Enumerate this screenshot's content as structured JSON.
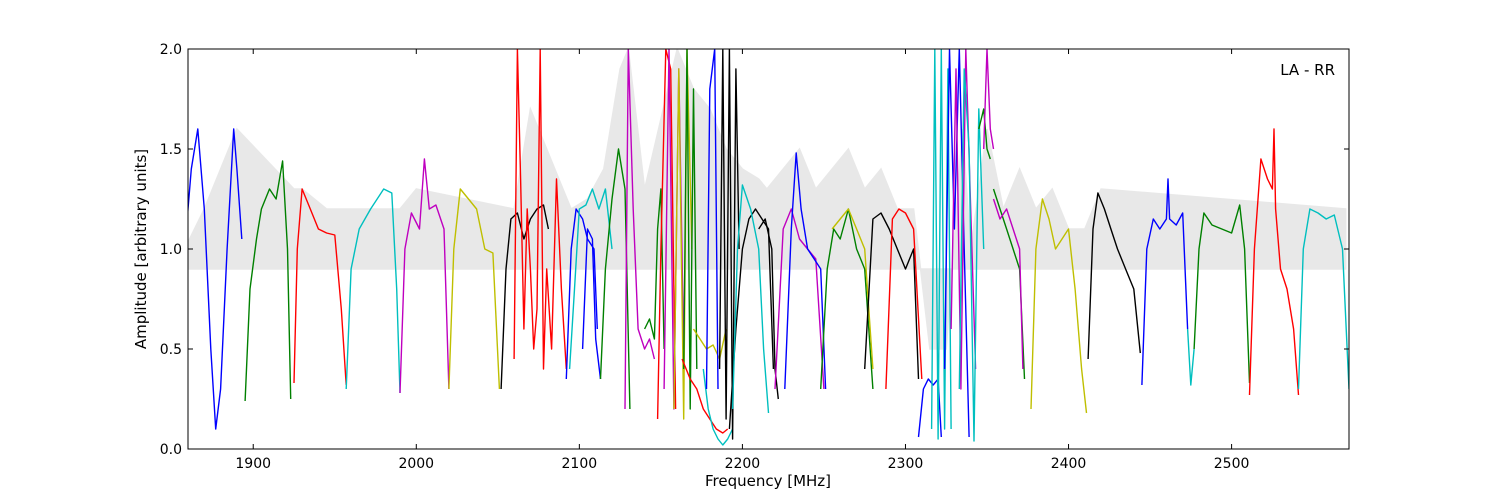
{
  "chart_data": {
    "type": "line",
    "title": "",
    "xlabel": "Frequency [MHz]",
    "ylabel": "Amplitude [arbitrary units]",
    "annotation": "LA - RR",
    "xlim": [
      1860,
      2572
    ],
    "ylim": [
      0.0,
      2.0
    ],
    "xticks": [
      1900,
      2000,
      2100,
      2200,
      2300,
      2400,
      2500
    ],
    "xtick_labels": [
      "1900",
      "2000",
      "2100",
      "2200",
      "2300",
      "2400",
      "2500"
    ],
    "yticks": [
      0.0,
      0.5,
      1.0,
      1.5,
      2.0
    ],
    "ytick_labels": [
      "0.0",
      "0.5",
      "1.0",
      "1.5",
      "2.0"
    ],
    "grid": false,
    "legend": "none",
    "background_series": {
      "color": "#c0c0c0",
      "x": [
        1858,
        1870,
        1890,
        1925,
        1930,
        1945,
        1990,
        2000,
        2060,
        2070,
        2090,
        2095,
        2105,
        2115,
        2125,
        2130,
        2140,
        2160,
        2170,
        2180,
        2190,
        2200,
        2210,
        2215,
        2225,
        2235,
        2245,
        2255,
        2265,
        2275,
        2285,
        2295,
        2305,
        2315,
        2325,
        2335,
        2340,
        2350,
        2360,
        2370,
        2380,
        2390,
        2400,
        2410,
        2420,
        2570
      ],
      "y": [
        1.0,
        1.2,
        1.6,
        1.3,
        1.3,
        1.2,
        1.2,
        1.3,
        1.2,
        1.7,
        1.3,
        1.2,
        1.25,
        1.4,
        1.9,
        2.0,
        1.3,
        2.0,
        1.8,
        1.7,
        1.5,
        1.4,
        1.35,
        1.3,
        1.4,
        1.5,
        1.3,
        1.4,
        1.5,
        1.3,
        1.4,
        1.2,
        1.2,
        0.5,
        0.5,
        1.6,
        1.0,
        1.6,
        1.2,
        1.4,
        1.2,
        1.3,
        1.1,
        1.1,
        1.3,
        1.2
      ]
    },
    "series": [
      {
        "color": "#0000ff",
        "x": [
          1858,
          1862,
          1866,
          1870,
          1874,
          1877,
          1880,
          1884,
          1888,
          1890,
          1893
        ],
        "y": [
          1.0,
          1.4,
          1.6,
          1.2,
          0.5,
          0.1,
          0.3,
          1.0,
          1.6,
          1.4,
          1.05
        ]
      },
      {
        "color": "#008000",
        "x": [
          1895,
          1898,
          1902,
          1905,
          1910,
          1914,
          1918,
          1921,
          1923
        ],
        "y": [
          0.24,
          0.8,
          1.05,
          1.2,
          1.3,
          1.25,
          1.44,
          1.0,
          0.25
        ]
      },
      {
        "color": "#ff0000",
        "x": [
          1925,
          1927,
          1930,
          1935,
          1940,
          1945,
          1950,
          1954,
          1957
        ],
        "y": [
          0.33,
          1.0,
          1.3,
          1.2,
          1.1,
          1.08,
          1.07,
          0.7,
          0.32
        ]
      },
      {
        "color": "#00bfbf",
        "x": [
          1957,
          1960,
          1965,
          1972,
          1980,
          1985,
          1988,
          1990
        ],
        "y": [
          0.3,
          0.9,
          1.1,
          1.2,
          1.3,
          1.28,
          0.8,
          0.28
        ]
      },
      {
        "color": "#bf00bf",
        "x": [
          1990,
          1993,
          1997,
          2002,
          2005,
          2008,
          2012,
          2017,
          2020
        ],
        "y": [
          0.28,
          1.0,
          1.18,
          1.1,
          1.45,
          1.2,
          1.22,
          1.1,
          0.3
        ]
      },
      {
        "color": "#bfbf00",
        "x": [
          2020,
          2023,
          2027,
          2032,
          2037,
          2042,
          2047,
          2051
        ],
        "y": [
          0.3,
          1.0,
          1.3,
          1.25,
          1.2,
          1.0,
          0.98,
          0.3
        ]
      },
      {
        "color": "#000000",
        "x": [
          2052,
          2055,
          2058,
          2062,
          2066,
          2070,
          2074,
          2078,
          2081
        ],
        "y": [
          0.3,
          0.9,
          1.15,
          1.18,
          1.05,
          1.15,
          1.2,
          1.22,
          1.1
        ]
      },
      {
        "color": "#ff0000",
        "x": [
          2060,
          2062,
          2064,
          2066,
          2068,
          2070,
          2072,
          2074,
          2076,
          2078,
          2080,
          2083,
          2086,
          2089,
          2092
        ],
        "y": [
          0.45,
          2.0,
          1.35,
          0.6,
          1.2,
          0.9,
          0.5,
          0.7,
          2.0,
          0.4,
          0.9,
          0.5,
          1.35,
          0.8,
          0.4
        ]
      },
      {
        "color": "#0000ff",
        "x": [
          2092,
          2095,
          2098,
          2102,
          2105,
          2109,
          2111
        ],
        "y": [
          0.35,
          1.0,
          1.2,
          1.15,
          1.05,
          1.0,
          0.6
        ]
      },
      {
        "color": "#00bfbf",
        "x": [
          2094,
          2097,
          2100,
          2104,
          2108,
          2112,
          2116,
          2120
        ],
        "y": [
          0.4,
          0.8,
          1.2,
          1.22,
          1.3,
          1.2,
          1.3,
          1.0
        ]
      },
      {
        "color": "#0000ff",
        "x": [
          2102,
          2105,
          2108,
          2110,
          2113
        ],
        "y": [
          0.5,
          1.1,
          1.05,
          0.55,
          0.35
        ]
      },
      {
        "color": "#008000",
        "x": [
          2113,
          2116,
          2120,
          2124,
          2128,
          2131
        ],
        "y": [
          0.35,
          0.9,
          1.25,
          1.5,
          1.3,
          0.2
        ]
      },
      {
        "color": "#bf00bf",
        "x": [
          2128,
          2130,
          2133,
          2136,
          2140,
          2143,
          2146
        ],
        "y": [
          0.2,
          2.0,
          1.2,
          0.6,
          0.5,
          0.55,
          0.45
        ]
      },
      {
        "color": "#008000",
        "x": [
          2140,
          2143,
          2146,
          2148,
          2150,
          2152
        ],
        "y": [
          0.6,
          0.65,
          0.55,
          1.1,
          1.3,
          0.5
        ]
      },
      {
        "color": "#ff0000",
        "x": [
          2148,
          2150,
          2153,
          2156,
          2159
        ],
        "y": [
          0.15,
          1.0,
          2.0,
          1.9,
          0.2
        ]
      },
      {
        "color": "#bf00bf",
        "x": [
          2152,
          2155,
          2158,
          2161,
          2164
        ],
        "y": [
          0.3,
          2.0,
          0.2,
          1.9,
          0.5
        ]
      },
      {
        "color": "#bfbf00",
        "x": [
          2158,
          2161,
          2164,
          2166,
          2169
        ],
        "y": [
          0.2,
          1.9,
          0.15,
          2.0,
          1.0
        ]
      },
      {
        "color": "#008000",
        "x": [
          2164,
          2166,
          2168,
          2170,
          2172
        ],
        "y": [
          0.4,
          2.0,
          0.2,
          1.8,
          0.4
        ]
      },
      {
        "color": "#bfbf00",
        "x": [
          2170,
          2174,
          2178,
          2182,
          2186,
          2190
        ],
        "y": [
          0.6,
          0.55,
          0.5,
          0.52,
          0.45,
          0.6
        ]
      },
      {
        "color": "#ff0000",
        "x": [
          2163,
          2168,
          2172,
          2176,
          2180,
          2184,
          2188,
          2191
        ],
        "y": [
          0.45,
          0.35,
          0.3,
          0.2,
          0.15,
          0.1,
          0.08,
          0.1
        ]
      },
      {
        "color": "#00bfbf",
        "x": [
          2176,
          2179,
          2182,
          2185,
          2188,
          2191,
          2194
        ],
        "y": [
          0.4,
          0.2,
          0.1,
          0.05,
          0.02,
          0.05,
          0.1
        ]
      },
      {
        "color": "#000000",
        "x": [
          2186,
          2188,
          2190,
          2192,
          2194,
          2196,
          2198
        ],
        "y": [
          0.4,
          2.0,
          0.15,
          2.0,
          0.05,
          1.9,
          1.0
        ]
      },
      {
        "color": "#0000ff",
        "x": [
          2178,
          2180,
          2183,
          2185
        ],
        "y": [
          0.3,
          1.8,
          2.0,
          0.3
        ]
      },
      {
        "color": "#000000",
        "x": [
          2192,
          2196,
          2200,
          2204,
          2208,
          2212,
          2216,
          2219
        ],
        "y": [
          0.1,
          0.6,
          1.0,
          1.15,
          1.2,
          1.15,
          1.1,
          0.4
        ]
      },
      {
        "color": "#00bfbf",
        "x": [
          2194,
          2197,
          2200,
          2205,
          2210,
          2213,
          2216
        ],
        "y": [
          0.2,
          1.0,
          1.32,
          1.2,
          1.0,
          0.5,
          0.18
        ]
      },
      {
        "color": "#000000",
        "x": [
          2210,
          2214,
          2218,
          2220,
          2222
        ],
        "y": [
          1.1,
          1.15,
          1.0,
          0.4,
          0.25
        ]
      },
      {
        "color": "#bf00bf",
        "x": [
          2220,
          2225,
          2230,
          2235,
          2240,
          2245,
          2250
        ],
        "y": [
          0.3,
          1.1,
          1.2,
          1.05,
          1.0,
          0.95,
          0.3
        ]
      },
      {
        "color": "#0000ff",
        "x": [
          2226,
          2230,
          2233,
          2236,
          2240,
          2244,
          2248,
          2251
        ],
        "y": [
          0.3,
          1.1,
          1.48,
          1.2,
          1.0,
          0.95,
          0.9,
          0.3
        ]
      },
      {
        "color": "#008000",
        "x": [
          2248,
          2252,
          2256,
          2260,
          2265,
          2270,
          2275,
          2280
        ],
        "y": [
          0.3,
          0.9,
          1.1,
          1.05,
          1.2,
          1.0,
          0.9,
          0.3
        ]
      },
      {
        "color": "#bfbf00",
        "x": [
          2255,
          2260,
          2265,
          2270,
          2275,
          2280
        ],
        "y": [
          1.1,
          1.15,
          1.2,
          1.1,
          1.0,
          0.4
        ]
      },
      {
        "color": "#000000",
        "x": [
          2275,
          2280,
          2285,
          2290,
          2295,
          2300,
          2305,
          2308
        ],
        "y": [
          0.4,
          1.15,
          1.18,
          1.1,
          1.0,
          0.9,
          1.0,
          0.35
        ]
      },
      {
        "color": "#ff0000",
        "x": [
          2288,
          2292,
          2296,
          2300,
          2305,
          2310
        ],
        "y": [
          0.3,
          1.15,
          1.2,
          1.18,
          1.1,
          0.35
        ]
      },
      {
        "color": "#0000ff",
        "x": [
          2308,
          2311,
          2314,
          2317,
          2320,
          2322
        ],
        "y": [
          0.06,
          0.3,
          0.35,
          0.32,
          0.35,
          0.06
        ]
      },
      {
        "color": "#00bfbf",
        "x": [
          2316,
          2318,
          2320,
          2322,
          2324,
          2326,
          2328
        ],
        "y": [
          0.1,
          2.0,
          0.05,
          2.0,
          0.1,
          1.9,
          0.1
        ]
      },
      {
        "color": "#0000ff",
        "x": [
          2324,
          2327,
          2330,
          2333,
          2336,
          2339
        ],
        "y": [
          0.4,
          2.0,
          1.1,
          2.0,
          1.0,
          0.06
        ]
      },
      {
        "color": "#bf00bf",
        "x": [
          2328,
          2331,
          2334,
          2337,
          2340,
          2343
        ],
        "y": [
          0.6,
          1.9,
          0.3,
          2.0,
          1.2,
          0.4
        ]
      },
      {
        "color": "#00bfbf",
        "x": [
          2333,
          2336,
          2339,
          2342,
          2345,
          2348
        ],
        "y": [
          0.3,
          1.9,
          1.5,
          0.04,
          1.7,
          1.0
        ]
      },
      {
        "color": "#008000",
        "x": [
          2345,
          2348,
          2350,
          2352
        ],
        "y": [
          1.6,
          1.7,
          1.5,
          1.45
        ]
      },
      {
        "color": "#bf00bf",
        "x": [
          2348,
          2350,
          2352,
          2354
        ],
        "y": [
          1.5,
          2.0,
          1.6,
          1.5
        ]
      },
      {
        "color": "#008000",
        "x": [
          2354,
          2358,
          2362,
          2366,
          2370,
          2373
        ],
        "y": [
          1.3,
          1.2,
          1.1,
          1.0,
          0.9,
          0.35
        ]
      },
      {
        "color": "#bf00bf",
        "x": [
          2354,
          2358,
          2362,
          2366,
          2370,
          2372
        ],
        "y": [
          1.25,
          1.15,
          1.2,
          1.1,
          1.0,
          0.4
        ]
      },
      {
        "color": "#bfbf00",
        "x": [
          2377,
          2380,
          2384,
          2388,
          2392,
          2396,
          2400,
          2404,
          2408,
          2411
        ],
        "y": [
          0.2,
          1.0,
          1.25,
          1.15,
          1.0,
          1.05,
          1.1,
          0.8,
          0.4,
          0.18
        ]
      },
      {
        "color": "#000000",
        "x": [
          2412,
          2415,
          2418,
          2422,
          2426,
          2430,
          2435,
          2440,
          2444
        ],
        "y": [
          0.45,
          1.1,
          1.28,
          1.2,
          1.1,
          1.0,
          0.9,
          0.8,
          0.48
        ]
      },
      {
        "color": "#0000ff",
        "x": [
          2445,
          2448,
          2452,
          2456,
          2460,
          2461,
          2462,
          2466,
          2470,
          2473
        ],
        "y": [
          0.32,
          1.0,
          1.15,
          1.1,
          1.15,
          1.35,
          1.15,
          1.12,
          1.18,
          0.6
        ]
      },
      {
        "color": "#00bfbf",
        "x": [
          2473,
          2475,
          2477
        ],
        "y": [
          0.6,
          0.32,
          0.5
        ]
      },
      {
        "color": "#008000",
        "x": [
          2477,
          2480,
          2483,
          2488,
          2494,
          2500,
          2505,
          2508,
          2511
        ],
        "y": [
          0.5,
          1.0,
          1.18,
          1.12,
          1.1,
          1.08,
          1.22,
          1.0,
          0.33
        ]
      },
      {
        "color": "#ff0000",
        "x": [
          2511,
          2514,
          2518,
          2522,
          2525,
          2526,
          2527,
          2530,
          2534,
          2538,
          2541
        ],
        "y": [
          0.27,
          1.0,
          1.45,
          1.35,
          1.3,
          1.6,
          1.2,
          0.9,
          0.8,
          0.6,
          0.27
        ]
      },
      {
        "color": "#00bfbf",
        "x": [
          2541,
          2544,
          2548,
          2553,
          2558,
          2563,
          2568,
          2572
        ],
        "y": [
          0.3,
          1.0,
          1.2,
          1.18,
          1.15,
          1.17,
          1.0,
          0.3
        ]
      }
    ]
  }
}
